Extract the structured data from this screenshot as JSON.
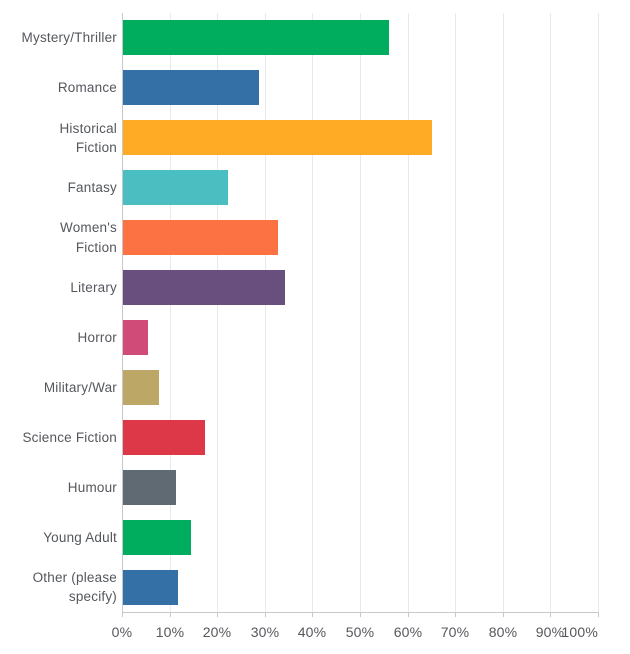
{
  "chart_data": {
    "type": "bar",
    "orientation": "horizontal",
    "title": "",
    "xlabel": "",
    "ylabel": "",
    "categories": [
      "Mystery/Thriller",
      "Romance",
      "Historical Fiction",
      "Fantasy",
      "Women's Fiction",
      "Literary",
      "Horror",
      "Military/War",
      "Science Fiction",
      "Humour",
      "Young Adult",
      "Other (please specify)"
    ],
    "values": [
      55.8,
      28.5,
      65.0,
      22.0,
      32.5,
      34.1,
      5.2,
      7.5,
      17.2,
      11.2,
      14.2,
      11.5
    ],
    "value_unit": "%",
    "bar_colors": [
      "#00AD5F",
      "#3470A6",
      "#FFAB26",
      "#4BBEC1",
      "#FD7242",
      "#684F7E",
      "#D04B78",
      "#BDA766",
      "#DC3848",
      "#5F6A72",
      "#00AD5F",
      "#3470A6"
    ],
    "x_ticks": [
      "0%",
      "10%",
      "20%",
      "30%",
      "40%",
      "50%",
      "60%",
      "70%",
      "80%",
      "90%",
      "100%"
    ],
    "xlim": [
      0,
      100
    ],
    "grid": "vertical-only",
    "legend": "none",
    "colors": {
      "text": "#54575C",
      "gridline": "#E9E9EA",
      "axis": "#C6C9CC",
      "background": "#FFFFFF"
    }
  }
}
